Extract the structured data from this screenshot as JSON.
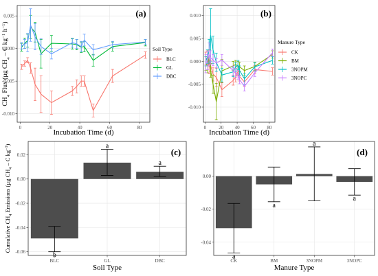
{
  "chart_data": [
    {
      "panel": "(a)",
      "type": "line",
      "ylabel": "CH4 Flux (µg CH4 – C kg−1 h−1)",
      "xlabel": "Incubation Time (d)",
      "xlim": [
        -2,
        87
      ],
      "ylim": [
        -0.0113,
        0.0066
      ],
      "xticks": [
        0,
        20,
        40,
        60,
        80
      ],
      "yticks": [
        -0.01,
        -0.005,
        0.0,
        0.005
      ],
      "ytick_labels": [
        "-0.010",
        "-0.005",
        "0.000",
        "0.005"
      ],
      "grid": true,
      "legend": {
        "title": "Soil Type",
        "position": "right"
      },
      "series": [
        {
          "name": "BLC",
          "color": "#f8766d",
          "x": [
            1,
            3,
            5,
            7,
            10,
            14,
            21,
            35,
            38,
            41,
            43,
            49,
            62,
            84
          ],
          "y": [
            -0.0028,
            -0.0023,
            -0.0018,
            -0.003,
            -0.0055,
            -0.007,
            -0.0083,
            -0.0065,
            -0.0058,
            -0.005,
            -0.005,
            -0.0095,
            -0.0042,
            -0.001
          ],
          "err": [
            0.0004,
            0.0004,
            0.0004,
            0.0008,
            0.0025,
            0.0028,
            0.0018,
            0.0007,
            0.001,
            0.0008,
            0.0008,
            0.001,
            0.001,
            0.0005
          ]
        },
        {
          "name": "GL",
          "color": "#00ba38",
          "x": [
            1,
            3,
            5,
            7,
            10,
            14,
            21,
            35,
            38,
            41,
            43,
            49,
            62,
            84
          ],
          "y": [
            0.0002,
            0.0008,
            0.0012,
            0.0033,
            0.0025,
            -0.0008,
            0.0008,
            0.0007,
            0.0006,
            0.0002,
            0.0003,
            -0.0018,
            0.0003,
            0.0009
          ],
          "err": [
            0.0006,
            0.0008,
            0.001,
            0.0018,
            0.0015,
            0.0022,
            0.0012,
            0.0008,
            0.0008,
            0.0008,
            0.0008,
            0.0009,
            0.0007,
            0.0005
          ]
        },
        {
          "name": "DBC",
          "color": "#619cff",
          "x": [
            1,
            3,
            5,
            7,
            10,
            14,
            21,
            35,
            38,
            41,
            43,
            49,
            62,
            84
          ],
          "y": [
            0.0004,
            0.0007,
            0.0009,
            0.0036,
            0.0018,
            0.0003,
            -0.0008,
            0.0009,
            0.0007,
            0.0003,
            0.0013,
            -0.0002,
            0.0006,
            0.001
          ],
          "err": [
            0.0005,
            0.0007,
            0.0014,
            0.0025,
            0.002,
            0.0012,
            0.0008,
            0.0007,
            0.0007,
            0.0008,
            0.0009,
            0.0008,
            0.0005,
            0.0004
          ]
        }
      ]
    },
    {
      "panel": "(b)",
      "type": "line",
      "xlabel": "Incubation Time (d)",
      "xlim": [
        -2,
        87
      ],
      "ylim": [
        -0.0133,
        0.0122
      ],
      "xticks": [
        0,
        20,
        40,
        60,
        80
      ],
      "yticks": [
        -0.01,
        -0.005,
        0.0,
        0.005,
        0.01
      ],
      "ytick_labels": [
        "-0.010",
        "-0.005",
        "0.000",
        "0.005",
        "0.010"
      ],
      "grid": true,
      "legend": {
        "title": "Manure Type",
        "position": "right"
      },
      "series": [
        {
          "name": "CK",
          "color": "#f8766d",
          "x": [
            1,
            3,
            5,
            7,
            10,
            14,
            21,
            35,
            38,
            41,
            43,
            49,
            62,
            84
          ],
          "y": [
            0.0006,
            0.0008,
            -0.0012,
            -0.001,
            -0.0028,
            -0.0035,
            -0.0062,
            -0.0042,
            -0.0035,
            -0.0022,
            -0.0033,
            -0.0045,
            -0.0018,
            -0.0022
          ],
          "err": [
            0.0014,
            0.0015,
            0.0015,
            0.0012,
            0.0015,
            0.002,
            0.0015,
            0.001,
            0.001,
            0.001,
            0.001,
            0.001,
            0.0009,
            0.0008
          ]
        },
        {
          "name": "BM",
          "color": "#7cae00",
          "x": [
            1,
            3,
            5,
            7,
            10,
            14,
            21,
            35,
            38,
            41,
            43,
            49,
            62,
            84
          ],
          "y": [
            -0.0005,
            -0.001,
            0.001,
            -0.002,
            -0.005,
            -0.0088,
            -0.0021,
            -0.001,
            -0.0007,
            -0.001,
            -0.0012,
            -0.002,
            -0.0011,
            0.0015
          ],
          "err": [
            0.0015,
            0.0015,
            0.0015,
            0.0015,
            0.002,
            0.004,
            0.0025,
            0.001,
            0.0009,
            0.001,
            0.001,
            0.001,
            0.0009,
            0.0008
          ]
        },
        {
          "name": "3NOPM",
          "color": "#00bfc4",
          "x": [
            1,
            3,
            5,
            7,
            10,
            14,
            21,
            35,
            38,
            41,
            43,
            49,
            62,
            84
          ],
          "y": [
            0.0,
            0.001,
            0.0023,
            0.0057,
            0.0025,
            -0.0002,
            -0.003,
            -0.0023,
            -0.0013,
            -0.0008,
            -0.002,
            -0.0038,
            -0.0012,
            0.0002
          ],
          "err": [
            0.001,
            0.0015,
            0.0025,
            0.0058,
            0.003,
            0.002,
            0.0015,
            0.001,
            0.001,
            0.001,
            0.001,
            0.0012,
            0.0009,
            0.0008
          ]
        },
        {
          "name": "3NOPC",
          "color": "#c77cff",
          "x": [
            1,
            3,
            5,
            7,
            10,
            14,
            21,
            35,
            38,
            41,
            43,
            49,
            62,
            84
          ],
          "y": [
            -0.0005,
            0.0002,
            0.0015,
            0.0008,
            0.0003,
            -0.0004,
            0.0003,
            -0.002,
            -0.0025,
            -0.003,
            -0.004,
            -0.0055,
            -0.0025,
            0.0019
          ],
          "err": [
            0.002,
            0.002,
            0.0025,
            0.0015,
            0.0012,
            0.001,
            0.0012,
            0.001,
            0.001,
            0.001,
            0.0009,
            0.001,
            0.0008,
            0.0008
          ]
        }
      ]
    },
    {
      "panel": "(c)",
      "type": "bar",
      "ylabel": "Cumulative CH4 Emissions (µg CH4 – C kg−1)",
      "xlabel": "Soil Type",
      "ylim": [
        -0.063,
        0.031
      ],
      "yticks": [
        -0.06,
        -0.04,
        -0.02,
        0.0,
        0.02
      ],
      "ytick_labels": [
        "-0.06",
        "-0.04",
        "-0.02",
        "0.00",
        "0.02"
      ],
      "grid": true,
      "bar_color": "#4d4d4d",
      "categories": [
        "BLC",
        "GL",
        "DBC"
      ],
      "values": [
        -0.049,
        0.0135,
        0.006
      ],
      "err_low": [
        -0.06,
        0.003,
        0.002
      ],
      "err_high": [
        -0.039,
        0.0245,
        0.0105
      ],
      "significance": [
        "b",
        "a",
        "a"
      ]
    },
    {
      "panel": "(d)",
      "type": "bar",
      "xlabel": "Manure Type",
      "ylim": [
        -0.048,
        0.021
      ],
      "yticks": [
        -0.04,
        -0.02,
        0.0
      ],
      "ytick_labels": [
        "-0.04",
        "-0.02",
        "0.00"
      ],
      "grid": true,
      "bar_color": "#4d4d4d",
      "categories": [
        "CK",
        "BM",
        "3NOPM",
        "3NOPC"
      ],
      "values": [
        -0.0315,
        -0.005,
        0.0013,
        -0.0035
      ],
      "err_low": [
        -0.0465,
        -0.0155,
        -0.015,
        -0.0115
      ],
      "err_high": [
        -0.0165,
        0.0055,
        0.0177,
        0.0045
      ],
      "significance": [
        "a",
        "a",
        "a",
        "a"
      ]
    }
  ]
}
